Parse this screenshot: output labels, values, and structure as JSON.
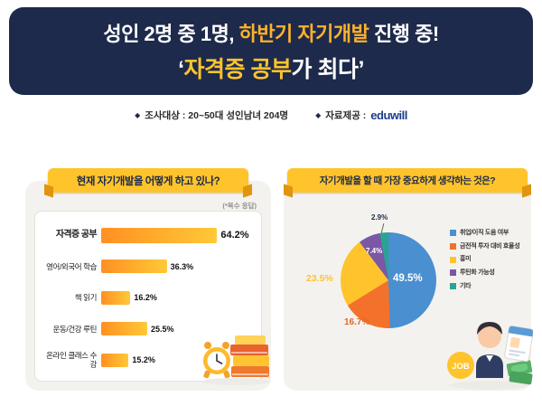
{
  "banner": {
    "line1": {
      "prefix": "성인 2명 중 1명, ",
      "highlight": "하반기 자기개발",
      "suffix": " 진행 중!"
    },
    "line2": {
      "open": "‘",
      "highlight": "자격증 공부",
      "suffix": "가 최다",
      "close": "’"
    }
  },
  "meta": {
    "survey": "조사대상 : 20~50대 성인남녀 204명",
    "source": "자료제공 :",
    "logo": "eduwill"
  },
  "panels": {
    "left_title": "현재 자기개발을 어떻게 하고 있나?",
    "left_note": "(*복수 응답)",
    "right_title": "자기개발을 할 때 가장 중요하게 생각하는 것은?"
  },
  "illustrations": {
    "job_label": "JOB"
  },
  "chart_data": [
    {
      "type": "bar",
      "orientation": "horizontal",
      "title": "현재 자기개발을 어떻게 하고 있나?",
      "note": "(*복수 응답)",
      "categories": [
        "자격증 공부",
        "영어/외국어 학습",
        "책 읽기",
        "운동/건강 루틴",
        "온라인 클래스 수강"
      ],
      "values": [
        64.2,
        36.3,
        16.2,
        25.5,
        15.2
      ],
      "unit": "%",
      "xlim": [
        0,
        70
      ],
      "bar_gradient": [
        "#ff9022",
        "#ffc937"
      ]
    },
    {
      "type": "pie",
      "title": "자기개발을 할 때 가장 중요하게 생각하는 것은?",
      "labels": [
        "취업/이직 도움 여부",
        "금전적 투자 대비 효율성",
        "흥미",
        "루틴화 가능성",
        "기타"
      ],
      "values": [
        49.5,
        16.7,
        23.5,
        7.4,
        2.9
      ],
      "colors": [
        "#4a8fd0",
        "#f4712b",
        "#ffc42c",
        "#7b57a6",
        "#2ba393"
      ],
      "label_colors": [
        "#ffffff",
        "#e9651d",
        "#ffc22e",
        "#ffffff",
        "#1d2a4b"
      ],
      "legend_position": "right"
    }
  ]
}
